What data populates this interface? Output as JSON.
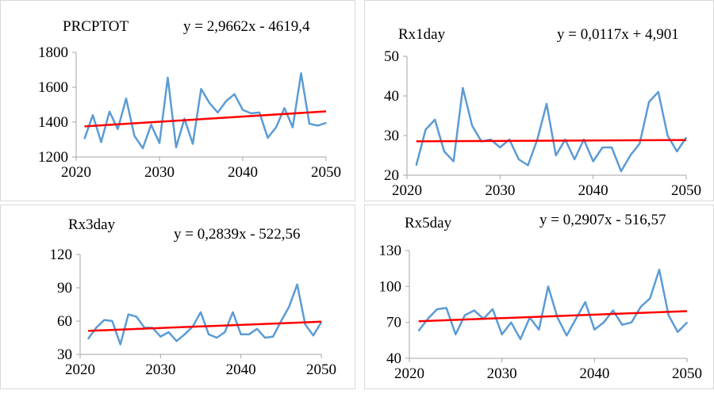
{
  "colors": {
    "series": "#5b9bd5",
    "trend": "#ff0000",
    "axis": "#a6a6a6",
    "text": "#000000",
    "background": "#ffffff"
  },
  "chart_data": [
    {
      "type": "line",
      "title": "PRCPTOT",
      "equation": "y = 2,9662x - 4619,4",
      "xlim": [
        2020,
        2050
      ],
      "ylim": [
        1200,
        1800
      ],
      "xticks": [
        2020,
        2030,
        2040,
        2050
      ],
      "yticks": [
        1200,
        1400,
        1600,
        1800
      ],
      "x": [
        2021,
        2022,
        2023,
        2024,
        2025,
        2026,
        2027,
        2028,
        2029,
        2030,
        2031,
        2032,
        2033,
        2034,
        2035,
        2036,
        2037,
        2038,
        2039,
        2040,
        2041,
        2042,
        2043,
        2044,
        2045,
        2046,
        2047,
        2048,
        2049,
        2050
      ],
      "values": [
        1305,
        1440,
        1285,
        1460,
        1360,
        1535,
        1320,
        1250,
        1385,
        1280,
        1655,
        1255,
        1420,
        1275,
        1590,
        1510,
        1455,
        1520,
        1560,
        1470,
        1450,
        1455,
        1310,
        1370,
        1480,
        1370,
        1680,
        1390,
        1380,
        1395
      ],
      "trend": {
        "slope": 2.9662,
        "intercept": -4619.4
      },
      "grid": false,
      "legend": "none"
    },
    {
      "type": "line",
      "title": "Rx1day",
      "equation": "y = 0,0117x + 4,901",
      "xlim": [
        2020,
        2050
      ],
      "ylim": [
        20,
        50
      ],
      "xticks": [
        2020,
        2030,
        2040,
        2050
      ],
      "yticks": [
        20,
        30,
        40,
        50
      ],
      "x": [
        2021,
        2022,
        2023,
        2024,
        2025,
        2026,
        2027,
        2028,
        2029,
        2030,
        2031,
        2032,
        2033,
        2034,
        2035,
        2036,
        2037,
        2038,
        2039,
        2040,
        2041,
        2042,
        2043,
        2044,
        2045,
        2046,
        2047,
        2048,
        2049,
        2050
      ],
      "values": [
        22.5,
        31.5,
        34,
        26,
        23.5,
        42,
        32.5,
        28.5,
        29,
        27,
        29,
        24,
        22.5,
        29,
        38,
        25,
        29,
        24,
        29,
        23.5,
        27,
        27,
        21,
        25,
        28,
        38.5,
        41,
        30,
        26,
        29.5
      ],
      "trend": {
        "slope": 0.0117,
        "intercept": 4.901
      },
      "grid": false,
      "legend": "none"
    },
    {
      "type": "line",
      "title": "Rx3day",
      "equation": "y = 0,2839x - 522,56",
      "xlim": [
        2020,
        2050
      ],
      "ylim": [
        30,
        120
      ],
      "xticks": [
        2020,
        2030,
        2040,
        2050
      ],
      "yticks": [
        30,
        60,
        90,
        120
      ],
      "x": [
        2021,
        2022,
        2023,
        2024,
        2025,
        2026,
        2027,
        2028,
        2029,
        2030,
        2031,
        2032,
        2033,
        2034,
        2035,
        2036,
        2037,
        2038,
        2039,
        2040,
        2041,
        2042,
        2043,
        2044,
        2045,
        2046,
        2047,
        2048,
        2049,
        2050
      ],
      "values": [
        44,
        54,
        61,
        60,
        39,
        66,
        64,
        54,
        54,
        46,
        50,
        42,
        48,
        55,
        68,
        48,
        45,
        50,
        68,
        48,
        48,
        53,
        45,
        46,
        60,
        73,
        93,
        57,
        47,
        59
      ],
      "trend": {
        "slope": 0.2839,
        "intercept": -522.56
      },
      "grid": false,
      "legend": "none"
    },
    {
      "type": "line",
      "title": "Rx5day",
      "equation": "y = 0,2907x - 516,57",
      "xlim": [
        2020,
        2050
      ],
      "ylim": [
        40,
        130
      ],
      "xticks": [
        2020,
        2030,
        2040,
        2050
      ],
      "yticks": [
        40,
        70,
        100,
        130
      ],
      "x": [
        2021,
        2022,
        2023,
        2024,
        2025,
        2026,
        2027,
        2028,
        2029,
        2030,
        2031,
        2032,
        2033,
        2034,
        2035,
        2036,
        2037,
        2038,
        2039,
        2040,
        2041,
        2042,
        2043,
        2044,
        2045,
        2046,
        2047,
        2048,
        2049,
        2050
      ],
      "values": [
        63,
        73,
        81,
        82,
        60,
        76,
        80,
        73,
        81,
        60,
        70,
        56,
        74,
        64,
        100,
        74,
        59,
        73,
        87,
        64,
        70,
        80,
        68,
        70,
        83,
        90,
        114,
        76,
        62,
        70
      ],
      "trend": {
        "slope": 0.2907,
        "intercept": -516.57
      },
      "grid": false,
      "legend": "none"
    }
  ]
}
